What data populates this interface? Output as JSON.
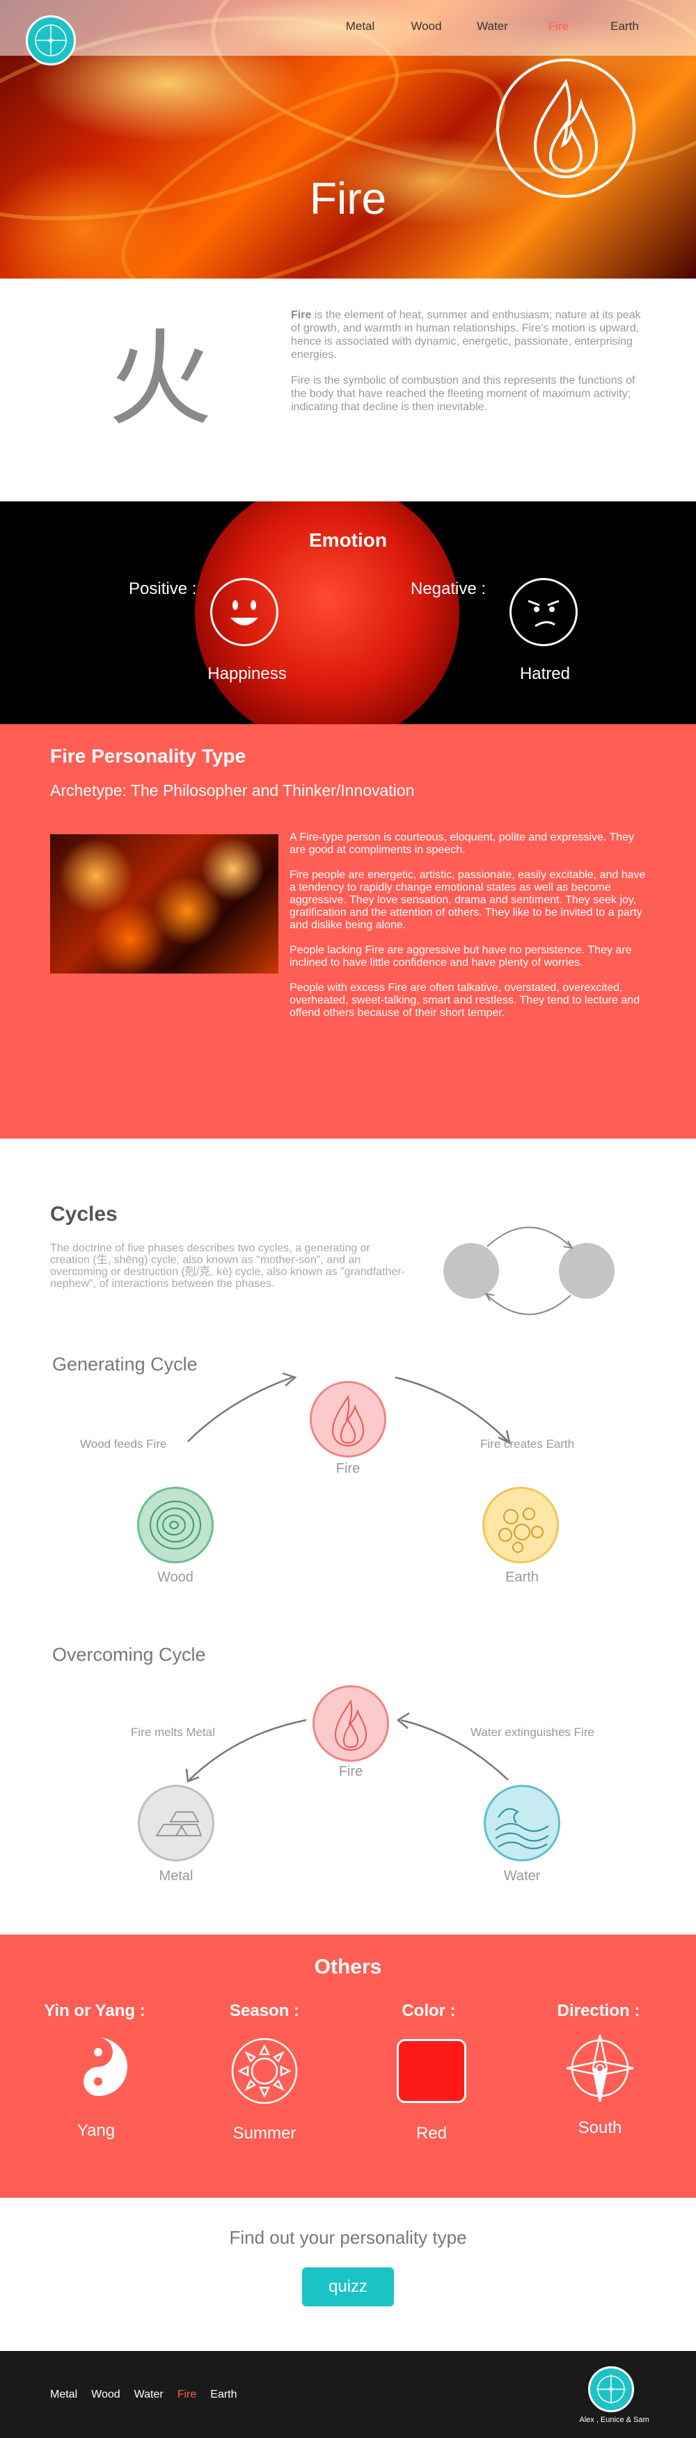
{
  "nav": {
    "items": [
      "Metal",
      "Wood",
      "Water",
      "Fire",
      "Earth"
    ],
    "active": "Fire"
  },
  "hero": {
    "title": "Fire"
  },
  "intro": {
    "character": "火",
    "bold_word": "Fire",
    "paragraph1_rest": " is the element of heat, summer and enthusiasm; nature at its peak of growth, and warmth in human relationships. Fire's motion is upward, hence is associated with dynamic, energetic, passionate, enterprising energies.",
    "paragraph2": "Fire is the symbolic of combustion and this represents the functions of the body that have reached the fleeting moment of maximum activity; indicating that decline is then inevitable."
  },
  "emotion": {
    "title": "Emotion",
    "positive_label": "Positive :",
    "positive_value": "Happiness",
    "negative_label": "Negative :",
    "negative_value": "Hatred"
  },
  "personality": {
    "title": "Fire Personality Type",
    "archetype": "Archetype: The Philosopher and Thinker/Innovation",
    "paragraphs": [
      "A Fire-type person is courteous, eloquent, polite and expressive. They are good at compliments in speech.",
      "Fire people are energetic, artistic, passionate, easily excitable, and have a tendency to rapidly change emotional states as well as become aggressive. They love sensation, drama and sentiment. They seek joy, gratification and the attention of others. They like to be invited to a party and dislike being alone.",
      "People lacking Fire are aggressive but have no persistence. They are inclined to have little confidence and have plenty of worries.",
      "People with excess Fire are often talkative, overstated, overexcited, overheated, sweet-talking, smart and restless. They tend to lecture and offend others because of their short temper."
    ]
  },
  "cycles": {
    "title": "Cycles",
    "description": "The doctrine of five phases describes two cycles, a generating or creation (生, shēng) cycle, also known as \"mother-son\", and an overcoming or destruction (剋/克, kè) cycle, also known as \"grandfather-nephew\", of interactions between the phases.",
    "generating": {
      "title": "Generating Cycle",
      "left_relation": "Wood feeds Fire",
      "right_relation": "Fire creates Earth",
      "top": "Fire",
      "left": "Wood",
      "right": "Earth"
    },
    "overcoming": {
      "title": "Overcoming Cycle",
      "left_relation": "Fire melts Metal",
      "right_relation": "Water extinguishes Fire",
      "top": "Fire",
      "left": "Metal",
      "right": "Water"
    }
  },
  "others": {
    "title": "Others",
    "items": [
      {
        "heading": "Yin or Yang :",
        "value": "Yang",
        "icon": "yin-yang-icon"
      },
      {
        "heading": "Season :",
        "value": "Summer",
        "icon": "sun-icon"
      },
      {
        "heading": "Color :",
        "value": "Red",
        "icon": "color-swatch-icon",
        "color": "#ff1a1a"
      },
      {
        "heading": "Direction :",
        "value": "South",
        "icon": "compass-icon"
      }
    ]
  },
  "quiz": {
    "prompt": "Find out your personality type",
    "button": "quizz"
  },
  "footer": {
    "items": [
      "Metal",
      "Wood",
      "Water",
      "Fire",
      "Earth"
    ],
    "credit": "Alex , Eunice & Sam"
  },
  "colors": {
    "accent": "#ff5e55",
    "teal": "#1cc3c6",
    "active_nav": "#ff5e4e"
  }
}
